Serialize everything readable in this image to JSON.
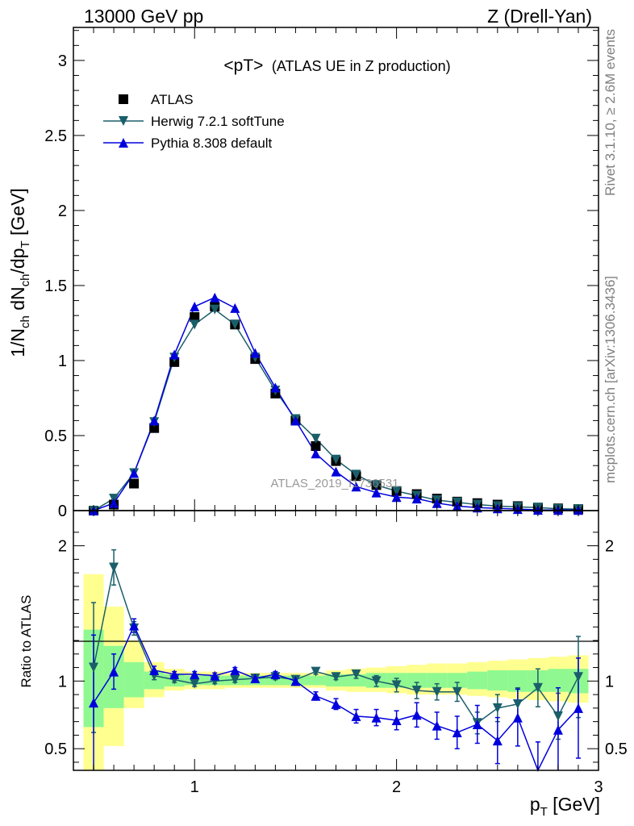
{
  "header": {
    "left": "13000 GeV pp",
    "right": "Z (Drell-Yan)"
  },
  "side_text": {
    "rivet": "Rivet 3.1.10, ≥ 2.6M events",
    "mcplots": "mcplots.cern.ch [arXiv:1306.3436]"
  },
  "watermark": "ATLAS_2019_I1736531",
  "colors": {
    "atlas": "#000000",
    "herwig": "#1a5e6a",
    "pythia": "#0000dd",
    "band_inner": "#90f890",
    "band_outer": "#ffff90"
  },
  "chart_data": [
    {
      "type": "line",
      "title_main": "<pT>",
      "title_sub": "(ATLAS UE in Z production)",
      "ylabel_parts": {
        "a": "1/N",
        "b": "ch",
        "c": " dN",
        "d": "ch",
        "e": "/dp",
        "f": "T",
        "g": " [GeV]"
      },
      "xlim": [
        0.4,
        3.0
      ],
      "ylim": [
        0,
        3.22
      ],
      "yticks": [
        "0",
        "0.5",
        "1",
        "1.5",
        "2",
        "2.5",
        "3"
      ],
      "ytick_values": [
        0,
        0.5,
        1,
        1.5,
        2,
        2.5,
        3
      ],
      "legend_position": "top-left",
      "x": [
        0.5,
        0.6,
        0.7,
        0.8,
        0.9,
        1.0,
        1.1,
        1.2,
        1.3,
        1.4,
        1.5,
        1.6,
        1.7,
        1.8,
        1.9,
        2.0,
        2.1,
        2.2,
        2.3,
        2.4,
        2.5,
        2.6,
        2.7,
        2.8,
        2.9
      ],
      "series": [
        {
          "name": "ATLAS",
          "marker": "square",
          "values": [
            0.0,
            0.04,
            0.18,
            0.55,
            0.99,
            1.29,
            1.36,
            1.24,
            1.01,
            0.78,
            0.6,
            0.43,
            0.33,
            0.23,
            0.17,
            0.13,
            0.11,
            0.08,
            0.06,
            0.05,
            0.04,
            0.03,
            0.02,
            0.015,
            0.01
          ]
        },
        {
          "name": "Herwig 7.2.1 softTune",
          "marker": "triangle-down",
          "values": [
            0.0,
            0.08,
            0.25,
            0.59,
            1.02,
            1.24,
            1.34,
            1.24,
            1.02,
            0.8,
            0.61,
            0.48,
            0.34,
            0.24,
            0.17,
            0.13,
            0.1,
            0.07,
            0.055,
            0.04,
            0.03,
            0.025,
            0.02,
            0.012,
            0.01
          ]
        },
        {
          "name": "Pythia 8.308 default",
          "marker": "triangle-up",
          "values": [
            0.0,
            0.05,
            0.25,
            0.6,
            1.04,
            1.36,
            1.42,
            1.35,
            1.05,
            0.82,
            0.6,
            0.38,
            0.26,
            0.16,
            0.12,
            0.09,
            0.08,
            0.05,
            0.03,
            0.02,
            0.015,
            0.01,
            0.005,
            0.004,
            0.004
          ]
        }
      ]
    },
    {
      "type": "line",
      "ylabel": "Ratio to ATLAS",
      "xlabel_parts": {
        "a": "p",
        "b": "T",
        "c": " [GeV]"
      },
      "xlim": [
        0.4,
        3.0
      ],
      "ylim": [
        0.34,
        2.26
      ],
      "xticks": [
        "1",
        "2",
        "3"
      ],
      "xtick_values": [
        1,
        2,
        3
      ],
      "yticks": [
        "0.5",
        "1",
        "2"
      ],
      "ytick_values": [
        0.5,
        1,
        2
      ],
      "x": [
        0.5,
        0.6,
        0.7,
        0.8,
        0.9,
        1.0,
        1.1,
        1.2,
        1.3,
        1.4,
        1.5,
        1.6,
        1.7,
        1.8,
        1.9,
        2.0,
        2.1,
        2.2,
        2.3,
        2.4,
        2.5,
        2.6,
        2.7,
        2.8,
        2.9
      ],
      "bin_edges": [
        0.45,
        0.55,
        0.65,
        0.75,
        0.85,
        0.95,
        1.05,
        1.15,
        1.25,
        1.35,
        1.45,
        1.55,
        1.65,
        1.75,
        1.85,
        1.95,
        2.05,
        2.15,
        2.25,
        2.35,
        2.45,
        2.55,
        2.65,
        2.75,
        2.85,
        2.95
      ],
      "band_inner": [
        [
          0.66,
          1.38
        ],
        [
          0.8,
          1.26
        ],
        [
          0.88,
          1.14
        ],
        [
          0.94,
          1.07
        ],
        [
          0.96,
          1.05
        ],
        [
          0.97,
          1.04
        ],
        [
          0.97,
          1.04
        ],
        [
          0.97,
          1.04
        ],
        [
          0.97,
          1.04
        ],
        [
          0.97,
          1.04
        ],
        [
          0.97,
          1.04
        ],
        [
          0.97,
          1.04
        ],
        [
          0.96,
          1.05
        ],
        [
          0.96,
          1.05
        ],
        [
          0.95,
          1.06
        ],
        [
          0.95,
          1.06
        ],
        [
          0.95,
          1.06
        ],
        [
          0.95,
          1.06
        ],
        [
          0.95,
          1.06
        ],
        [
          0.94,
          1.07
        ],
        [
          0.93,
          1.08
        ],
        [
          0.92,
          1.08
        ],
        [
          0.92,
          1.08
        ],
        [
          0.92,
          1.09
        ],
        [
          0.91,
          1.09
        ]
      ],
      "band_outer": [
        [
          0.34,
          1.79
        ],
        [
          0.52,
          1.55
        ],
        [
          0.8,
          1.3
        ],
        [
          0.88,
          1.14
        ],
        [
          0.93,
          1.09
        ],
        [
          0.94,
          1.07
        ],
        [
          0.94,
          1.07
        ],
        [
          0.95,
          1.06
        ],
        [
          0.95,
          1.06
        ],
        [
          0.95,
          1.06
        ],
        [
          0.95,
          1.06
        ],
        [
          0.95,
          1.06
        ],
        [
          0.93,
          1.08
        ],
        [
          0.92,
          1.09
        ],
        [
          0.92,
          1.1
        ],
        [
          0.91,
          1.11
        ],
        [
          0.9,
          1.12
        ],
        [
          0.9,
          1.13
        ],
        [
          0.9,
          1.13
        ],
        [
          0.89,
          1.14
        ],
        [
          0.88,
          1.15
        ],
        [
          0.87,
          1.16
        ],
        [
          0.86,
          1.17
        ],
        [
          0.85,
          1.18
        ],
        [
          0.84,
          1.19
        ]
      ],
      "series": [
        {
          "name": "Herwig 7.2.1 softTune",
          "marker": "triangle-down",
          "values": [
            1.1,
            1.84,
            1.39,
            1.04,
            1.01,
            0.98,
            1.0,
            1.01,
            1.02,
            1.03,
            1.01,
            1.07,
            1.03,
            1.05,
            1.0,
            0.97,
            0.93,
            0.92,
            0.92,
            0.69,
            0.8,
            0.83,
            0.95,
            0.74,
            1.03
          ],
          "errors": [
            0.48,
            0.13,
            0.05,
            0.03,
            0.02,
            0.02,
            0.02,
            0.02,
            0.02,
            0.02,
            0.02,
            0.02,
            0.02,
            0.03,
            0.04,
            0.05,
            0.06,
            0.06,
            0.07,
            0.08,
            0.1,
            0.12,
            0.14,
            0.17,
            0.3
          ]
        },
        {
          "name": "Pythia 8.308 default",
          "marker": "triangle-up",
          "values": [
            0.84,
            1.07,
            1.41,
            1.08,
            1.05,
            1.05,
            1.04,
            1.08,
            1.02,
            1.05,
            1.0,
            0.89,
            0.83,
            0.74,
            0.73,
            0.71,
            0.75,
            0.67,
            0.62,
            0.68,
            0.56,
            0.73,
            0.3,
            0.64,
            0.8
          ],
          "errors": [
            0.5,
            0.13,
            0.05,
            0.03,
            0.02,
            0.02,
            0.02,
            0.02,
            0.02,
            0.02,
            0.03,
            0.03,
            0.04,
            0.05,
            0.06,
            0.07,
            0.09,
            0.1,
            0.12,
            0.14,
            0.17,
            0.21,
            0.25,
            0.31,
            0.37
          ]
        }
      ]
    }
  ]
}
